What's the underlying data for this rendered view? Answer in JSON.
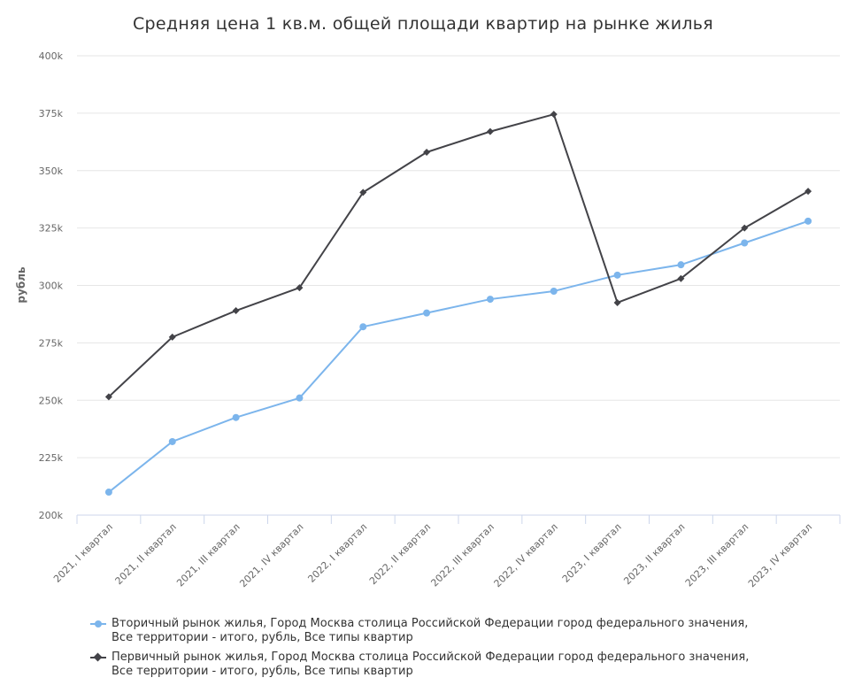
{
  "chart_data": {
    "type": "line",
    "title": "Средняя цена 1 кв.м. общей площади квартир на рынке жилья",
    "ylabel": "рубль",
    "xlabel": "",
    "ylim": [
      200000,
      400000
    ],
    "yticks": [
      200000,
      225000,
      250000,
      275000,
      300000,
      325000,
      350000,
      375000,
      400000
    ],
    "ytick_labels": [
      "200k",
      "225k",
      "250k",
      "275k",
      "300k",
      "325k",
      "350k",
      "375k",
      "400k"
    ],
    "grid": true,
    "legend_position": "bottom",
    "categories": [
      "2021, I квартал",
      "2021, II квартал",
      "2021, III квартал",
      "2021, IV квартал",
      "2022, I квартал",
      "2022, II квартал",
      "2022, III квартал",
      "2022, IV квартал",
      "2023, I квартал",
      "2023, II квартал",
      "2023, III квартал",
      "2023, IV квартал"
    ],
    "series": [
      {
        "name": "Вторичный рынок жилья, Город Москва столица Российской Федерации город федерального значения, Все территории - итого, рубль, Все типы квартир",
        "name_lines": [
          "Вторичный рынок жилья, Город Москва столица Российской Федерации город федерального значения,",
          "Все территории - итого, рубль, Все типы квартир"
        ],
        "color": "#7cb5ec",
        "marker": "circle",
        "values": [
          210000,
          232000,
          242500,
          251000,
          282000,
          288000,
          294000,
          297500,
          304500,
          309000,
          318500,
          328000
        ]
      },
      {
        "name": "Первичный рынок жилья, Город Москва столица Российской Федерации город федерального значения, Все территории - итого, рубль, Все типы квартир",
        "name_lines": [
          "Первичный рынок жилья, Город Москва столица Российской Федерации город федерального значения,",
          "Все территории - итого, рубль, Все типы квартир"
        ],
        "color": "#434348",
        "marker": "diamond",
        "values": [
          251500,
          277500,
          289000,
          299000,
          340500,
          358000,
          367000,
          374500,
          292500,
          303000,
          325000,
          341000
        ]
      }
    ]
  }
}
